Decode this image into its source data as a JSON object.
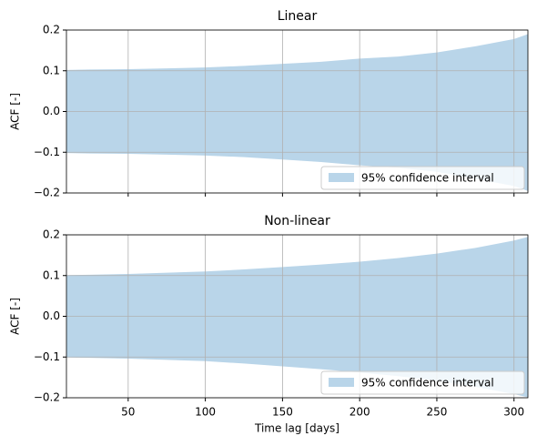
{
  "chart_data": [
    {
      "type": "band",
      "title": "Linear",
      "ylabel": "ACF [-]",
      "x": [
        10,
        25,
        50,
        75,
        100,
        125,
        150,
        175,
        200,
        225,
        250,
        275,
        300,
        309
      ],
      "series": [
        {
          "name": "95% confidence interval",
          "color": "#b9d5e9",
          "upper": [
            0.102,
            0.103,
            0.104,
            0.106,
            0.108,
            0.112,
            0.117,
            0.122,
            0.13,
            0.135,
            0.145,
            0.16,
            0.178,
            0.19
          ],
          "lower": [
            -0.102,
            -0.103,
            -0.104,
            -0.106,
            -0.108,
            -0.112,
            -0.118,
            -0.124,
            -0.132,
            -0.138,
            -0.148,
            -0.165,
            -0.183,
            -0.195
          ]
        }
      ],
      "xlim": [
        10,
        309
      ],
      "xticks": [
        50,
        100,
        150,
        200,
        250,
        300
      ],
      "show_xtick_labels": false,
      "ylim": [
        -0.2,
        0.2
      ],
      "yticks": [
        {
          "value": -0.2,
          "label": "−0.2"
        },
        {
          "value": -0.1,
          "label": "−0.1"
        },
        {
          "value": 0,
          "label": "0.0"
        },
        0.1,
        0.2
      ],
      "grid": true,
      "legend": "lower right"
    },
    {
      "type": "band",
      "title": "Non-linear",
      "ylabel": "ACF [-]",
      "xlabel": "Time lag [days]",
      "x": [
        10,
        25,
        50,
        75,
        100,
        125,
        150,
        175,
        200,
        225,
        250,
        275,
        300,
        309
      ],
      "series": [
        {
          "name": "95% confidence interval",
          "color": "#b9d5e9",
          "upper": [
            0.101,
            0.102,
            0.104,
            0.107,
            0.11,
            0.115,
            0.121,
            0.127,
            0.134,
            0.143,
            0.154,
            0.168,
            0.186,
            0.195
          ],
          "lower": [
            -0.101,
            -0.102,
            -0.104,
            -0.107,
            -0.11,
            -0.116,
            -0.123,
            -0.13,
            -0.138,
            -0.147,
            -0.158,
            -0.173,
            -0.191,
            -0.199
          ]
        }
      ],
      "xlim": [
        10,
        309
      ],
      "xticks": [
        50,
        100,
        150,
        200,
        250,
        300
      ],
      "show_xtick_labels": true,
      "ylim": [
        -0.2,
        0.2
      ],
      "yticks": [
        {
          "value": -0.2,
          "label": "−0.2"
        },
        {
          "value": -0.1,
          "label": "−0.1"
        },
        {
          "value": 0,
          "label": "0.0"
        },
        0.1,
        0.2
      ],
      "grid": true,
      "legend": "lower right"
    }
  ]
}
